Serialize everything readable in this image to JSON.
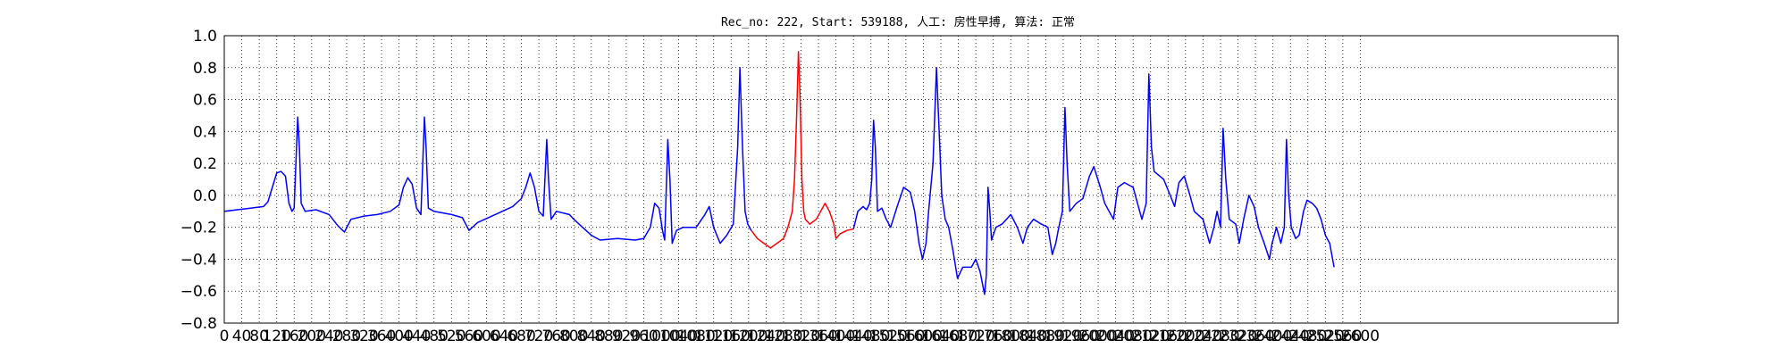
{
  "chart_data": {
    "type": "line",
    "title": "Rec_no: 222, Start: 539188, 人工: 房性早搏, 算法: 正常",
    "xlabel": "",
    "ylabel": "",
    "ylim": [
      -0.8,
      1.0
    ],
    "xlim": [
      0,
      3190
    ],
    "grid": true,
    "yticks": [
      "1.0",
      "0.8",
      "0.6",
      "0.4",
      "0.2",
      "0.0",
      "−0.2",
      "−0.4",
      "−0.6",
      "−0.8"
    ],
    "ytick_values": [
      1.0,
      0.8,
      0.6,
      0.4,
      0.2,
      0.0,
      -0.2,
      -0.4,
      -0.6,
      -0.8
    ],
    "xticks": [
      "0",
      "40",
      "80",
      "120",
      "160",
      "200",
      "240",
      "280",
      "320",
      "360",
      "400",
      "440",
      "480",
      "520",
      "560",
      "600",
      "640",
      "680",
      "720",
      "760",
      "800",
      "840",
      "880",
      "920",
      "960",
      "1000",
      "1040",
      "1080",
      "1120",
      "1160",
      "1200",
      "1240",
      "1280",
      "1320",
      "1360",
      "1400",
      "1440",
      "1480",
      "1520",
      "1560",
      "1600",
      "1640",
      "1680",
      "1720",
      "1760",
      "1800",
      "1840",
      "1880",
      "1920",
      "1960",
      "2000",
      "2040",
      "2080",
      "2120",
      "2160",
      "2200",
      "2240",
      "2280",
      "2320",
      "2360",
      "2400",
      "2440",
      "2480",
      "2520",
      "2560",
      "2600"
    ],
    "xtick_values": [
      0,
      40,
      80,
      120,
      160,
      200,
      240,
      280,
      320,
      360,
      400,
      440,
      480,
      520,
      560,
      600,
      640,
      680,
      720,
      760,
      800,
      840,
      880,
      920,
      960,
      1000,
      1040,
      1080,
      1120,
      1160,
      1200,
      1240,
      1280,
      1320,
      1360,
      1400,
      1440,
      1480,
      1520,
      1560,
      1600,
      1640,
      1680,
      1720,
      1760,
      1800,
      1840,
      1880,
      1920,
      1960,
      2000,
      2040,
      2080,
      2120,
      2160,
      2200,
      2240,
      2280,
      2320,
      2360,
      2400,
      2440,
      2480,
      2520,
      2560,
      2600
    ],
    "series": [
      {
        "color": "#0000ff",
        "points": [
          [
            0,
            -0.1
          ],
          [
            30,
            -0.09
          ],
          [
            60,
            -0.08
          ],
          [
            90,
            -0.07
          ],
          [
            100,
            -0.04
          ],
          [
            110,
            0.05
          ],
          [
            120,
            0.14
          ],
          [
            130,
            0.15
          ],
          [
            140,
            0.12
          ],
          [
            148,
            -0.05
          ],
          [
            155,
            -0.1
          ],
          [
            160,
            -0.08
          ],
          [
            168,
            0.49
          ],
          [
            172,
            0.3
          ],
          [
            176,
            -0.05
          ],
          [
            185,
            -0.1
          ],
          [
            210,
            -0.09
          ],
          [
            240,
            -0.12
          ],
          [
            260,
            -0.19
          ],
          [
            275,
            -0.23
          ],
          [
            290,
            -0.15
          ],
          [
            320,
            -0.13
          ],
          [
            350,
            -0.12
          ],
          [
            380,
            -0.1
          ],
          [
            400,
            -0.06
          ],
          [
            410,
            0.05
          ],
          [
            420,
            0.11
          ],
          [
            430,
            0.07
          ],
          [
            440,
            -0.08
          ],
          [
            450,
            -0.12
          ],
          [
            458,
            0.49
          ],
          [
            462,
            0.3
          ],
          [
            467,
            -0.08
          ],
          [
            480,
            -0.1
          ],
          [
            520,
            -0.12
          ],
          [
            545,
            -0.14
          ],
          [
            560,
            -0.22
          ],
          [
            580,
            -0.17
          ],
          [
            620,
            -0.12
          ],
          [
            660,
            -0.07
          ],
          [
            680,
            -0.02
          ],
          [
            690,
            0.05
          ],
          [
            700,
            0.14
          ],
          [
            710,
            0.05
          ],
          [
            720,
            -0.1
          ],
          [
            730,
            -0.13
          ],
          [
            738,
            0.35
          ],
          [
            742,
            0.1
          ],
          [
            748,
            -0.15
          ],
          [
            760,
            -0.1
          ],
          [
            790,
            -0.12
          ],
          [
            800,
            -0.15
          ],
          [
            820,
            -0.2
          ],
          [
            840,
            -0.25
          ],
          [
            860,
            -0.28
          ],
          [
            900,
            -0.27
          ],
          [
            940,
            -0.28
          ],
          [
            960,
            -0.27
          ],
          [
            975,
            -0.2
          ],
          [
            985,
            -0.05
          ],
          [
            995,
            -0.08
          ],
          [
            1003,
            -0.22
          ],
          [
            1008,
            -0.28
          ],
          [
            1015,
            0.35
          ],
          [
            1020,
            0.1
          ],
          [
            1025,
            -0.3
          ],
          [
            1035,
            -0.22
          ],
          [
            1050,
            -0.2
          ],
          [
            1080,
            -0.2
          ],
          [
            1100,
            -0.12
          ],
          [
            1110,
            -0.07
          ],
          [
            1120,
            -0.2
          ],
          [
            1135,
            -0.3
          ],
          [
            1150,
            -0.25
          ],
          [
            1165,
            -0.18
          ],
          [
            1175,
            0.3
          ],
          [
            1180,
            0.8
          ],
          [
            1186,
            0.3
          ],
          [
            1192,
            -0.1
          ],
          [
            1198,
            -0.18
          ],
          [
            1206,
            -0.22
          ]
        ]
      },
      {
        "color": "#ff0000",
        "points": [
          [
            1206,
            -0.22
          ],
          [
            1220,
            -0.27
          ],
          [
            1235,
            -0.3
          ],
          [
            1250,
            -0.33
          ],
          [
            1265,
            -0.3
          ],
          [
            1280,
            -0.27
          ],
          [
            1290,
            -0.2
          ],
          [
            1300,
            -0.1
          ],
          [
            1305,
            0.1
          ],
          [
            1310,
            0.5
          ],
          [
            1314,
            0.9
          ],
          [
            1318,
            0.6
          ],
          [
            1322,
            0.1
          ],
          [
            1326,
            -0.1
          ],
          [
            1330,
            -0.15
          ],
          [
            1340,
            -0.18
          ],
          [
            1355,
            -0.15
          ],
          [
            1365,
            -0.1
          ],
          [
            1375,
            -0.05
          ],
          [
            1385,
            -0.1
          ],
          [
            1395,
            -0.18
          ],
          [
            1400,
            -0.27
          ],
          [
            1410,
            -0.24
          ],
          [
            1425,
            -0.22
          ],
          [
            1440,
            -0.21
          ]
        ]
      },
      {
        "color": "#0000ff",
        "points": [
          [
            1440,
            -0.21
          ],
          [
            1450,
            -0.1
          ],
          [
            1462,
            -0.07
          ],
          [
            1470,
            -0.09
          ],
          [
            1477,
            -0.05
          ],
          [
            1482,
            0.1
          ],
          [
            1486,
            0.47
          ],
          [
            1490,
            0.3
          ],
          [
            1495,
            -0.1
          ],
          [
            1505,
            -0.08
          ],
          [
            1515,
            -0.15
          ],
          [
            1525,
            -0.2
          ],
          [
            1540,
            -0.07
          ],
          [
            1555,
            0.05
          ],
          [
            1570,
            0.02
          ],
          [
            1580,
            -0.1
          ],
          [
            1590,
            -0.3
          ],
          [
            1598,
            -0.4
          ],
          [
            1606,
            -0.3
          ],
          [
            1612,
            -0.1
          ],
          [
            1622,
            0.2
          ],
          [
            1630,
            0.8
          ],
          [
            1636,
            0.4
          ],
          [
            1642,
            0.0
          ],
          [
            1650,
            -0.15
          ],
          [
            1658,
            -0.2
          ],
          [
            1668,
            -0.35
          ],
          [
            1678,
            -0.52
          ],
          [
            1690,
            -0.45
          ],
          [
            1710,
            -0.45
          ],
          [
            1720,
            -0.4
          ],
          [
            1730,
            -0.48
          ],
          [
            1740,
            -0.62
          ],
          [
            1744,
            -0.5
          ],
          [
            1748,
            0.05
          ],
          [
            1752,
            -0.1
          ],
          [
            1756,
            -0.28
          ],
          [
            1766,
            -0.2
          ],
          [
            1780,
            -0.18
          ],
          [
            1800,
            -0.12
          ],
          [
            1815,
            -0.2
          ],
          [
            1828,
            -0.3
          ],
          [
            1838,
            -0.2
          ],
          [
            1852,
            -0.15
          ],
          [
            1870,
            -0.18
          ],
          [
            1885,
            -0.2
          ],
          [
            1895,
            -0.37
          ],
          [
            1903,
            -0.3
          ],
          [
            1910,
            -0.2
          ],
          [
            1918,
            -0.1
          ],
          [
            1924,
            0.55
          ],
          [
            1929,
            0.2
          ],
          [
            1935,
            -0.1
          ],
          [
            1950,
            -0.05
          ],
          [
            1965,
            -0.02
          ],
          [
            1980,
            0.12
          ],
          [
            1990,
            0.18
          ],
          [
            2005,
            0.05
          ],
          [
            2015,
            -0.05
          ],
          [
            2025,
            -0.1
          ],
          [
            2035,
            -0.15
          ],
          [
            2045,
            0.05
          ],
          [
            2060,
            0.08
          ],
          [
            2080,
            0.05
          ],
          [
            2090,
            -0.05
          ],
          [
            2100,
            -0.15
          ],
          [
            2110,
            -0.05
          ],
          [
            2116,
            0.76
          ],
          [
            2122,
            0.3
          ],
          [
            2128,
            0.15
          ],
          [
            2150,
            0.1
          ],
          [
            2165,
            0.0
          ],
          [
            2175,
            -0.07
          ],
          [
            2185,
            0.08
          ],
          [
            2197,
            0.12
          ],
          [
            2210,
            0.0
          ],
          [
            2220,
            -0.1
          ],
          [
            2240,
            -0.15
          ],
          [
            2255,
            -0.3
          ],
          [
            2265,
            -0.2
          ],
          [
            2272,
            -0.1
          ],
          [
            2280,
            -0.2
          ],
          [
            2286,
            0.42
          ],
          [
            2292,
            0.1
          ],
          [
            2300,
            -0.15
          ],
          [
            2315,
            -0.18
          ],
          [
            2323,
            -0.3
          ],
          [
            2333,
            -0.15
          ],
          [
            2345,
            0.0
          ],
          [
            2357,
            -0.07
          ],
          [
            2367,
            -0.2
          ],
          [
            2380,
            -0.3
          ],
          [
            2392,
            -0.4
          ],
          [
            2398,
            -0.3
          ],
          [
            2408,
            -0.2
          ],
          [
            2418,
            -0.3
          ],
          [
            2426,
            -0.2
          ],
          [
            2431,
            0.35
          ],
          [
            2436,
            0.0
          ],
          [
            2442,
            -0.2
          ],
          [
            2452,
            -0.27
          ],
          [
            2460,
            -0.25
          ],
          [
            2470,
            -0.1
          ],
          [
            2478,
            -0.03
          ],
          [
            2490,
            -0.05
          ],
          [
            2500,
            -0.08
          ],
          [
            2510,
            -0.15
          ],
          [
            2520,
            -0.25
          ],
          [
            2530,
            -0.3
          ],
          [
            2540,
            -0.45
          ]
        ]
      }
    ]
  }
}
